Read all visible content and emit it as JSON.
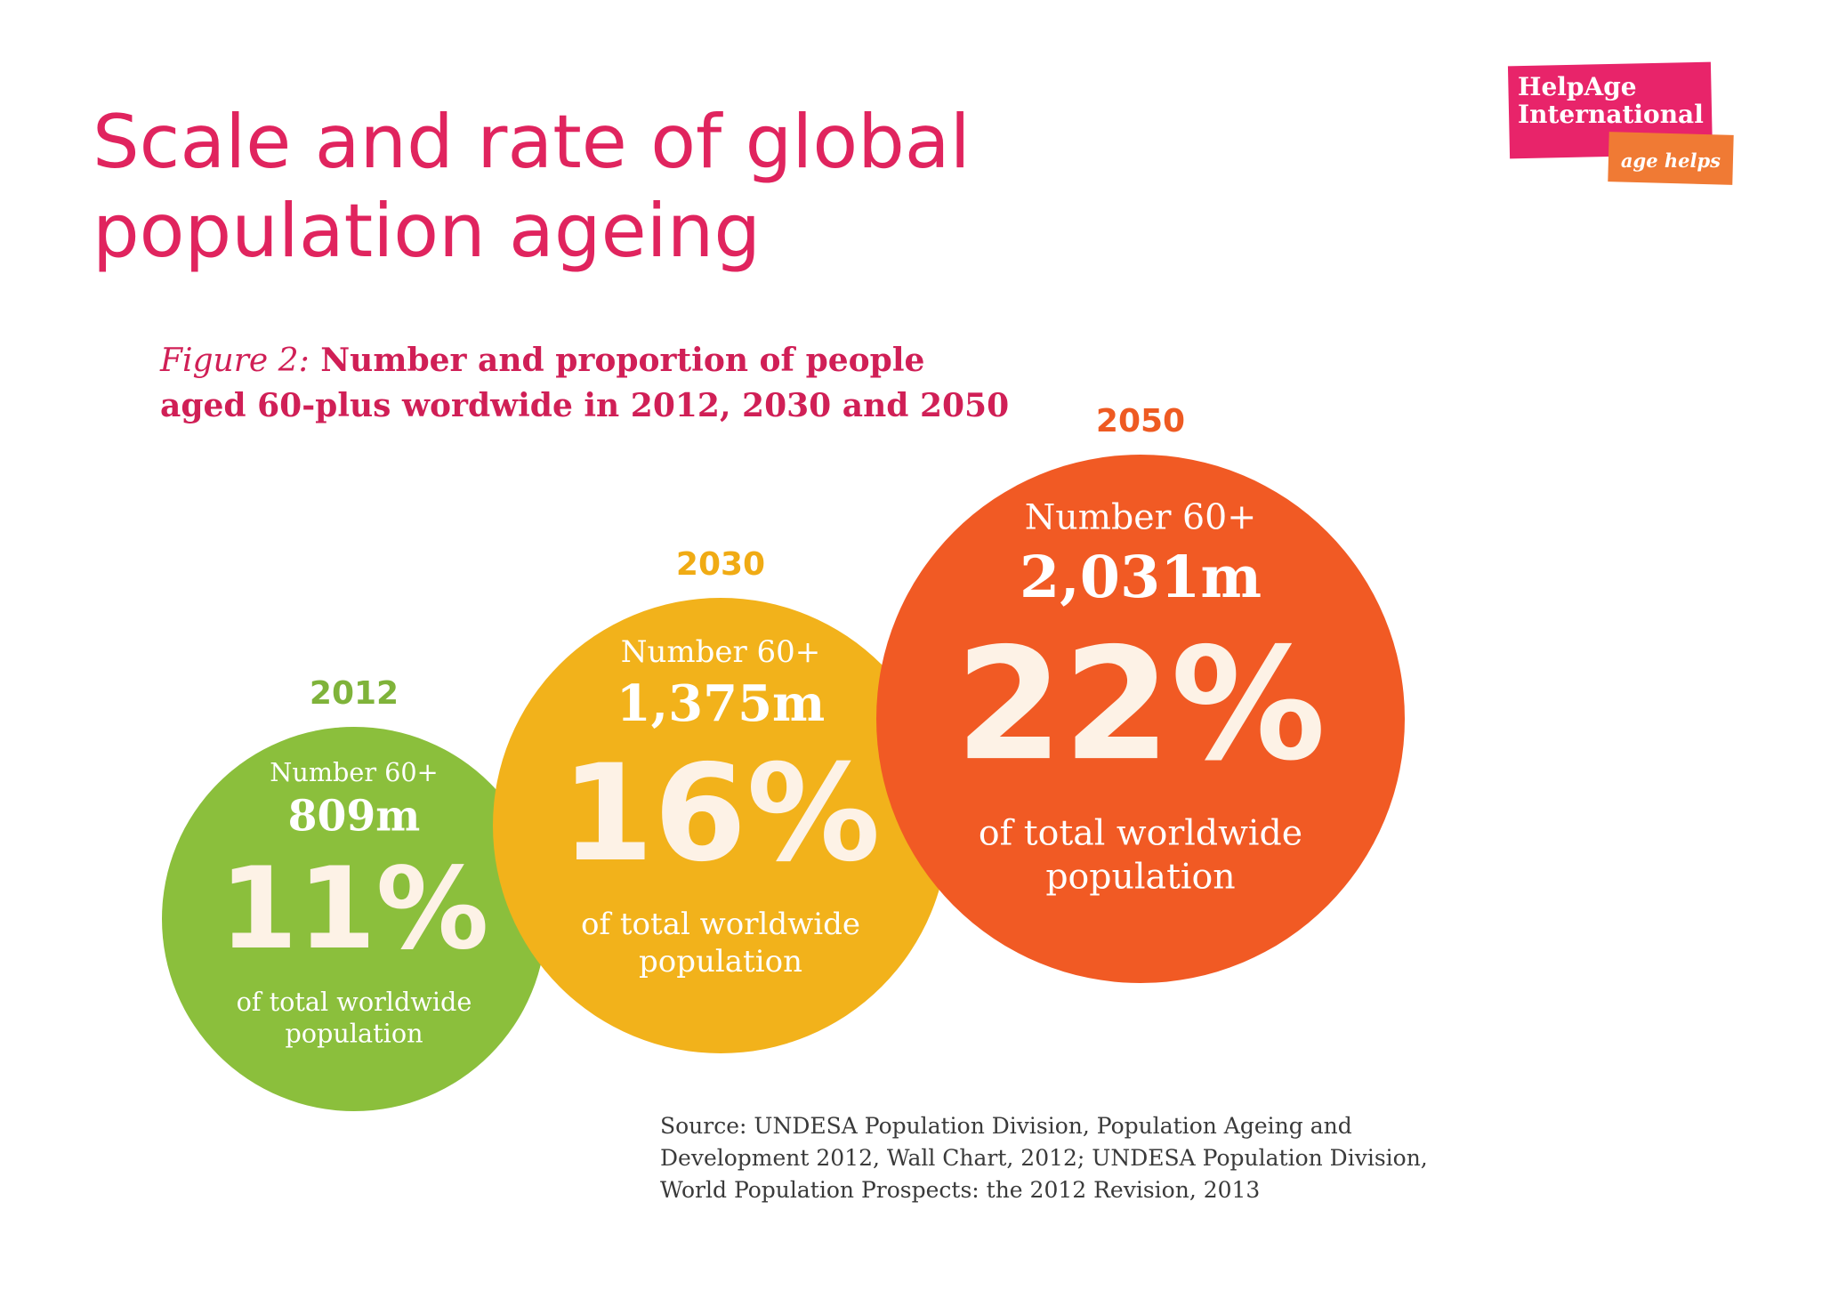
{
  "slide": {
    "title_line1": "Scale and rate of global",
    "title_line2": "population ageing"
  },
  "logo": {
    "name_line1": "HelpAge",
    "name_line2": "International",
    "tagline": "age helps",
    "colors": {
      "pink": "#e8246a",
      "orange": "#f07a34"
    }
  },
  "figure": {
    "label": "Figure 2:",
    "caption_line1": "Number and proportion of people",
    "caption_line2": "aged 60-plus wordwide in 2012, 2030 and 2050"
  },
  "chart_data": {
    "type": "bubble",
    "categories": [
      "2012",
      "2030",
      "2050"
    ],
    "number_label": "Number 60+",
    "percent_caption_line1": "of total worldwide",
    "percent_caption_line2": "population",
    "series": [
      {
        "year": "2012",
        "number_text": "809m",
        "number_millions": 809,
        "percent_text": "11%",
        "percent": 11,
        "color": "#8bbf3c",
        "label_color": "#7fb33a"
      },
      {
        "year": "2030",
        "number_text": "1,375m",
        "number_millions": 1375,
        "percent_text": "16%",
        "percent": 16,
        "color": "#f2b21b",
        "label_color": "#f0ab14"
      },
      {
        "year": "2050",
        "number_text": "2,031m",
        "number_millions": 2031,
        "percent_text": "22%",
        "percent": 22,
        "color": "#f15a24",
        "label_color": "#ee5a22"
      }
    ]
  },
  "source": {
    "line1": "Source: UNDESA Population Division, Population Ageing and",
    "line2": "Development 2012, Wall Chart, 2012; UNDESA Population Division,",
    "line3": "World Population Prospects: the 2012 Revision, 2013"
  }
}
